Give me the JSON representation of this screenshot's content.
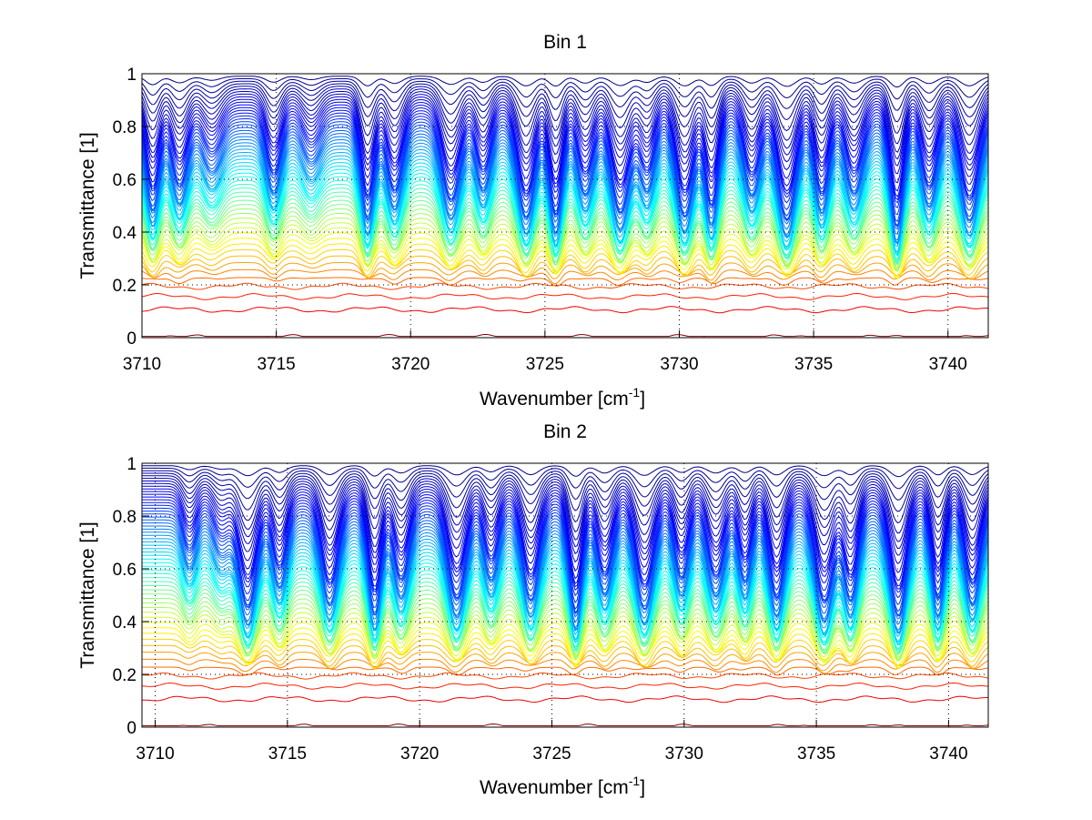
{
  "chart_data": [
    {
      "type": "line",
      "title": "Bin 1",
      "xlabel": "Wavenumber [cm",
      "xlabel_sup": "-1",
      "xlabel_end": "]",
      "ylabel": "Transmittance [1]",
      "xlim": [
        3710,
        3741.5
      ],
      "ylim": [
        0,
        1
      ],
      "xticks": [
        3710,
        3715,
        3720,
        3725,
        3730,
        3735,
        3740
      ],
      "xtick_labels": [
        "3710",
        "3715",
        "3720",
        "3725",
        "3730",
        "3735",
        "3740"
      ],
      "yticks": [
        0,
        0.2,
        0.4,
        0.6,
        0.8,
        1
      ],
      "ytick_labels": [
        "0",
        "0.2",
        "0.4",
        "0.6",
        "0.8",
        "1"
      ],
      "grid": true,
      "colormap": "jet",
      "series_description": "Family of ~60 transmittance spectra (colored by jet colormap from dark red at low transmittance to blue near 1) with absorption lines",
      "num_series": 60,
      "absorption_line_centers": [
        3710.4,
        3711.4,
        3712.6,
        3714.9,
        3716.3,
        3718.4,
        3719.4,
        3721.5,
        3722.7,
        3724.3,
        3725.4,
        3726.5,
        3727.8,
        3728.8,
        3730.2,
        3731.2,
        3732.7,
        3734.0,
        3735.3,
        3736.5,
        3738.1,
        3739.3,
        3740.8
      ],
      "line_depth_levels": [
        0.38,
        0.5,
        0.7,
        0.55,
        0.75,
        0.3,
        0.45,
        0.38,
        0.55,
        0.3,
        0.25,
        0.5,
        0.3,
        0.55,
        0.3,
        0.3,
        0.5,
        0.25,
        0.4,
        0.5,
        0.2,
        0.45,
        0.3
      ]
    },
    {
      "type": "line",
      "title": "Bin 2",
      "xlabel": "Wavenumber [cm",
      "xlabel_sup": "-1",
      "xlabel_end": "]",
      "ylabel": "Transmittance [1]",
      "xlim": [
        3709.5,
        3741.5
      ],
      "ylim": [
        0,
        1
      ],
      "xticks": [
        3710,
        3715,
        3720,
        3725,
        3730,
        3735,
        3740
      ],
      "xtick_labels": [
        "3710",
        "3715",
        "3720",
        "3725",
        "3730",
        "3735",
        "3740"
      ],
      "yticks": [
        0,
        0.2,
        0.4,
        0.6,
        0.8,
        1
      ],
      "ytick_labels": [
        "0",
        "0.2",
        "0.4",
        "0.6",
        "0.8",
        "1"
      ],
      "grid": true,
      "colormap": "jet",
      "series_description": "Family of ~60 transmittance spectra (colored by jet colormap from dark red at low transmittance to blue near 1) with absorption lines",
      "num_series": 60,
      "absorption_line_centers": [
        3711.3,
        3712.5,
        3713.5,
        3714.7,
        3716.6,
        3718.3,
        3719.3,
        3721.4,
        3722.7,
        3724.2,
        3725.9,
        3727.0,
        3728.5,
        3729.9,
        3731.2,
        3732.3,
        3733.5,
        3735.3,
        3736.3,
        3738.1,
        3739.6,
        3740.9
      ],
      "line_depth_levels": [
        0.7,
        0.75,
        0.25,
        0.5,
        0.35,
        0.25,
        0.45,
        0.3,
        0.55,
        0.35,
        0.22,
        0.45,
        0.3,
        0.5,
        0.45,
        0.5,
        0.3,
        0.25,
        0.35,
        0.2,
        0.3,
        0.35
      ]
    }
  ]
}
